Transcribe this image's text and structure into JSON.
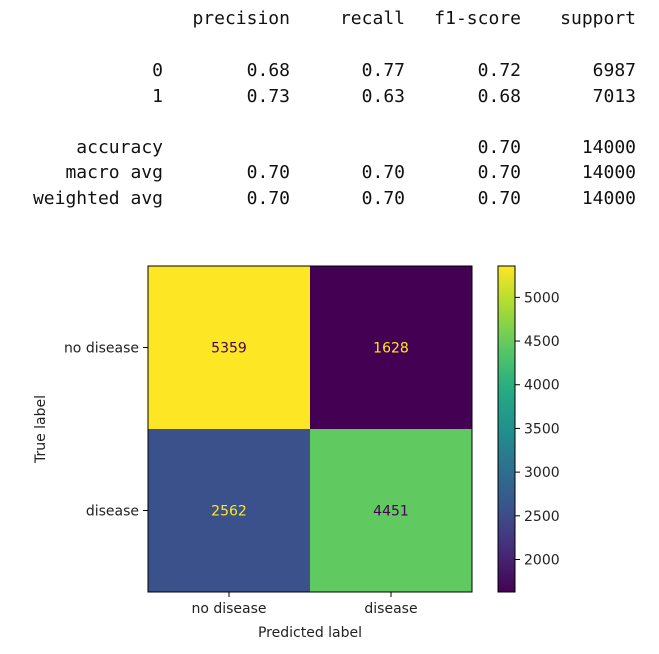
{
  "report": {
    "headers": [
      "precision",
      "recall",
      "f1-score",
      "support"
    ],
    "rows": [
      {
        "label": "0",
        "precision": "0.68",
        "recall": "0.77",
        "f1": "0.72",
        "support": "6987"
      },
      {
        "label": "1",
        "precision": "0.73",
        "recall": "0.63",
        "f1": "0.68",
        "support": "7013"
      },
      {
        "label": "accuracy",
        "precision": "",
        "recall": "",
        "f1": "0.70",
        "support": "14000"
      },
      {
        "label": "macro avg",
        "precision": "0.70",
        "recall": "0.70",
        "f1": "0.70",
        "support": "14000"
      },
      {
        "label": "weighted avg",
        "precision": "0.70",
        "recall": "0.70",
        "f1": "0.70",
        "support": "14000"
      }
    ]
  },
  "chart_data": {
    "type": "heatmap",
    "title": "",
    "xlabel": "Predicted label",
    "ylabel": "True label",
    "x_categories": [
      "no disease",
      "disease"
    ],
    "y_categories": [
      "no disease",
      "disease"
    ],
    "values": [
      [
        5359,
        1628
      ],
      [
        2562,
        4451
      ]
    ],
    "colormap": "viridis",
    "colorbar": {
      "min": 1628,
      "max": 5359,
      "ticks": [
        2000,
        2500,
        3000,
        3500,
        4000,
        4500,
        5000
      ],
      "tick_labels": [
        "2000",
        "2500",
        "3000",
        "3500",
        "4000",
        "4500",
        "5000"
      ]
    },
    "text_colors": {
      "on_dark": "#fde725",
      "on_light": "#440154"
    }
  }
}
